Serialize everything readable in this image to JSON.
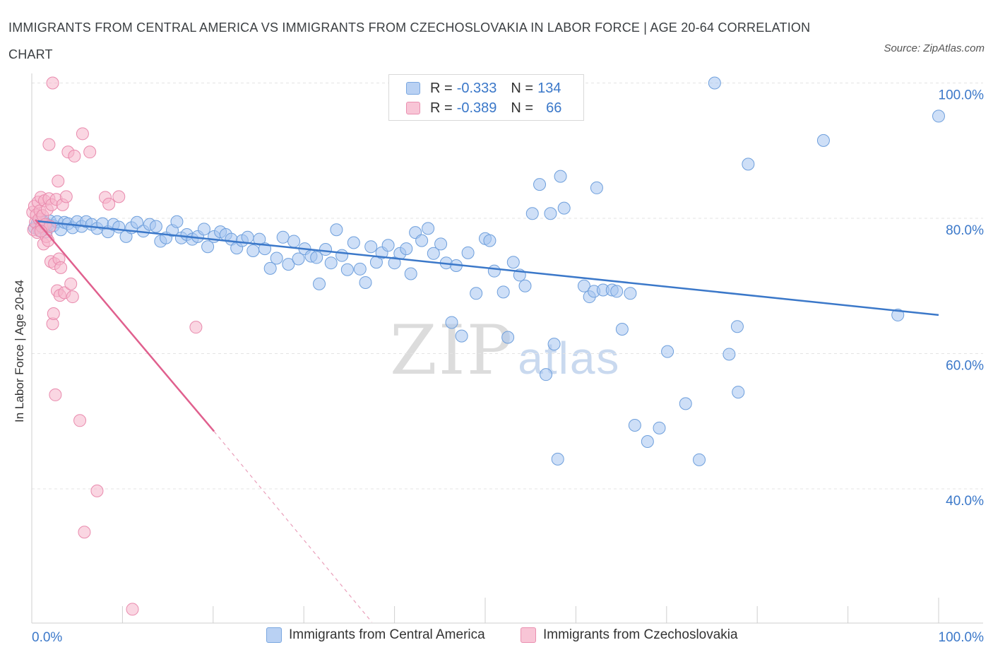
{
  "header": {
    "title": "IMMIGRANTS FROM CENTRAL AMERICA VS IMMIGRANTS FROM CZECHOSLOVAKIA IN LABOR FORCE | AGE 20-64 CORRELATION CHART",
    "source": "Source: ZipAtlas.com"
  },
  "watermark": {
    "zip": "ZIP",
    "atlas": "atlas"
  },
  "legend": {
    "rows": [
      {
        "r_label": "R =",
        "r_value": "-0.333",
        "n_label": "N =",
        "n_value": "134",
        "color": "#7aa7e0",
        "fill": "#b9d1f3"
      },
      {
        "r_label": "R =",
        "r_value": "-0.389",
        "n_label": "N =",
        "n_value": "66",
        "color": "#ea8fb0",
        "fill": "#f8c5d6"
      }
    ]
  },
  "bottom_legend": {
    "blue_label": "Immigrants from Central America",
    "pink_label": "Immigrants from Czechoslovakia"
  },
  "chart_data": {
    "type": "scatter",
    "ylabel": "In Labor Force | Age 20-64",
    "xlabel": "",
    "xlim": [
      0,
      100
    ],
    "ylim": [
      20,
      102
    ],
    "x_tick_labels": [
      "0.0%",
      "100.0%"
    ],
    "y_ticks": [
      40,
      60,
      80,
      100
    ],
    "y_tick_labels": [
      "40.0%",
      "60.0%",
      "80.0%",
      "100.0%"
    ],
    "grid": true,
    "colors": {
      "blue": "#3b78c9",
      "blue_fill": "#b9d1f3",
      "pink": "#e0608e",
      "pink_fill": "#f8c5d6",
      "axis_text": "#3b78c9"
    },
    "series": [
      {
        "name": "Immigrants from Central America",
        "color": "#3b78c9",
        "trend": {
          "x": [
            0.5,
            100
          ],
          "y": [
            79.6,
            65.7
          ]
        },
        "points": [
          [
            0.3,
            78.6
          ],
          [
            0.6,
            79.3
          ],
          [
            0.8,
            78.2
          ],
          [
            1.0,
            79.8
          ],
          [
            1.2,
            78.5
          ],
          [
            1.4,
            79.4
          ],
          [
            1.6,
            78.0
          ],
          [
            1.8,
            79.0
          ],
          [
            2.0,
            79.6
          ],
          [
            2.4,
            78.9
          ],
          [
            2.8,
            79.5
          ],
          [
            3.2,
            78.3
          ],
          [
            3.6,
            79.4
          ],
          [
            4.0,
            79.2
          ],
          [
            4.5,
            78.6
          ],
          [
            5.0,
            79.5
          ],
          [
            5.5,
            78.8
          ],
          [
            6.0,
            79.5
          ],
          [
            6.6,
            79.1
          ],
          [
            7.2,
            78.5
          ],
          [
            7.8,
            79.2
          ],
          [
            8.4,
            78.0
          ],
          [
            9.0,
            79.1
          ],
          [
            9.6,
            78.7
          ],
          [
            10.4,
            77.3
          ],
          [
            11.0,
            78.6
          ],
          [
            11.6,
            79.4
          ],
          [
            12.3,
            78.1
          ],
          [
            13.0,
            79.1
          ],
          [
            13.7,
            78.8
          ],
          [
            14.2,
            76.6
          ],
          [
            14.8,
            77.1
          ],
          [
            15.5,
            78.2
          ],
          [
            16.0,
            79.5
          ],
          [
            16.5,
            77.1
          ],
          [
            17.1,
            77.6
          ],
          [
            17.7,
            76.9
          ],
          [
            18.3,
            77.3
          ],
          [
            19.0,
            78.4
          ],
          [
            19.4,
            75.8
          ],
          [
            20.1,
            77.3
          ],
          [
            20.8,
            78.0
          ],
          [
            21.4,
            77.6
          ],
          [
            22.0,
            76.9
          ],
          [
            22.6,
            75.6
          ],
          [
            23.2,
            76.7
          ],
          [
            23.8,
            77.2
          ],
          [
            24.4,
            75.2
          ],
          [
            25.1,
            76.9
          ],
          [
            25.7,
            75.5
          ],
          [
            26.3,
            72.6
          ],
          [
            27.0,
            74.1
          ],
          [
            27.7,
            77.2
          ],
          [
            28.3,
            73.2
          ],
          [
            28.9,
            76.6
          ],
          [
            29.4,
            74.0
          ],
          [
            30.1,
            75.5
          ],
          [
            30.8,
            74.4
          ],
          [
            31.4,
            74.2
          ],
          [
            31.7,
            70.3
          ],
          [
            32.4,
            75.4
          ],
          [
            33.0,
            73.4
          ],
          [
            33.6,
            78.3
          ],
          [
            34.2,
            74.5
          ],
          [
            34.8,
            72.4
          ],
          [
            35.5,
            76.4
          ],
          [
            36.2,
            72.5
          ],
          [
            36.8,
            70.5
          ],
          [
            37.4,
            75.8
          ],
          [
            38.0,
            73.5
          ],
          [
            38.6,
            74.9
          ],
          [
            39.3,
            76.0
          ],
          [
            40.0,
            73.4
          ],
          [
            40.6,
            74.8
          ],
          [
            41.3,
            75.5
          ],
          [
            41.8,
            71.8
          ],
          [
            42.3,
            77.9
          ],
          [
            43.0,
            76.7
          ],
          [
            43.7,
            78.5
          ],
          [
            44.3,
            74.8
          ],
          [
            45.1,
            76.2
          ],
          [
            45.7,
            73.4
          ],
          [
            46.3,
            64.6
          ],
          [
            46.8,
            73.0
          ],
          [
            47.4,
            62.6
          ],
          [
            48.1,
            74.9
          ],
          [
            49.0,
            68.9
          ],
          [
            50.0,
            77.0
          ],
          [
            50.5,
            76.7
          ],
          [
            51.0,
            72.2
          ],
          [
            52.0,
            69.1
          ],
          [
            52.5,
            62.4
          ],
          [
            53.1,
            73.5
          ],
          [
            53.8,
            71.6
          ],
          [
            54.4,
            70.0
          ],
          [
            55.2,
            80.7
          ],
          [
            56.0,
            85.0
          ],
          [
            56.7,
            56.9
          ],
          [
            57.2,
            80.7
          ],
          [
            57.6,
            61.4
          ],
          [
            58.0,
            44.4
          ],
          [
            58.3,
            86.2
          ],
          [
            58.7,
            81.5
          ],
          [
            60.9,
            70.0
          ],
          [
            61.5,
            68.4
          ],
          [
            62.0,
            69.2
          ],
          [
            62.3,
            84.5
          ],
          [
            63.0,
            69.4
          ],
          [
            64.0,
            69.4
          ],
          [
            64.5,
            69.2
          ],
          [
            65.1,
            63.6
          ],
          [
            66.0,
            68.9
          ],
          [
            66.5,
            49.4
          ],
          [
            67.9,
            47.0
          ],
          [
            69.2,
            49.0
          ],
          [
            70.1,
            60.3
          ],
          [
            72.1,
            52.6
          ],
          [
            73.6,
            44.3
          ],
          [
            75.3,
            100.0
          ],
          [
            76.9,
            59.9
          ],
          [
            77.8,
            64.0
          ],
          [
            77.9,
            54.3
          ],
          [
            79.0,
            88.0
          ],
          [
            87.3,
            91.5
          ],
          [
            95.5,
            65.7
          ],
          [
            100.0,
            95.1
          ],
          [
            49.8,
            100.2
          ],
          [
            51.1,
            100.2
          ]
        ]
      },
      {
        "name": "Immigrants from Czechoslovakia",
        "color": "#e0608e",
        "trend": {
          "x": [
            0.4,
            20.1
          ],
          "y": [
            79.8,
            48.5
          ]
        },
        "trend_dashed": {
          "x": [
            20.1,
            37.5
          ],
          "y": [
            48.5,
            20.3
          ]
        },
        "points": [
          [
            0.1,
            80.9
          ],
          [
            0.2,
            78.3
          ],
          [
            0.3,
            81.8
          ],
          [
            0.4,
            79.4
          ],
          [
            0.5,
            80.5
          ],
          [
            0.6,
            77.9
          ],
          [
            0.7,
            82.4
          ],
          [
            0.8,
            79.9
          ],
          [
            0.9,
            81.1
          ],
          [
            1.0,
            83.1
          ],
          [
            1.1,
            78.8
          ],
          [
            1.2,
            80.4
          ],
          [
            1.3,
            76.2
          ],
          [
            1.4,
            82.6
          ],
          [
            1.5,
            79.1
          ],
          [
            1.6,
            77.3
          ],
          [
            1.7,
            81.3
          ],
          [
            1.8,
            76.7
          ],
          [
            1.9,
            82.9
          ],
          [
            2.0,
            78.8
          ],
          [
            2.1,
            73.6
          ],
          [
            2.2,
            82.0
          ],
          [
            2.3,
            64.4
          ],
          [
            2.4,
            65.9
          ],
          [
            2.5,
            73.3
          ],
          [
            2.6,
            53.9
          ],
          [
            2.7,
            82.8
          ],
          [
            2.8,
            69.3
          ],
          [
            2.9,
            85.5
          ],
          [
            3.0,
            74.0
          ],
          [
            3.1,
            68.6
          ],
          [
            3.2,
            72.7
          ],
          [
            3.4,
            82.0
          ],
          [
            3.6,
            69.0
          ],
          [
            3.8,
            83.2
          ],
          [
            4.0,
            89.8
          ],
          [
            4.3,
            70.3
          ],
          [
            4.5,
            68.4
          ],
          [
            4.7,
            89.2
          ],
          [
            5.3,
            50.1
          ],
          [
            5.6,
            92.5
          ],
          [
            5.8,
            33.6
          ],
          [
            6.4,
            89.8
          ],
          [
            7.2,
            39.7
          ],
          [
            8.1,
            83.1
          ],
          [
            8.5,
            82.1
          ],
          [
            9.6,
            83.2
          ],
          [
            11.1,
            22.2
          ],
          [
            18.1,
            63.9
          ],
          [
            2.3,
            100.0
          ],
          [
            1.9,
            90.9
          ],
          [
            1.0,
            78.1
          ]
        ]
      }
    ]
  }
}
